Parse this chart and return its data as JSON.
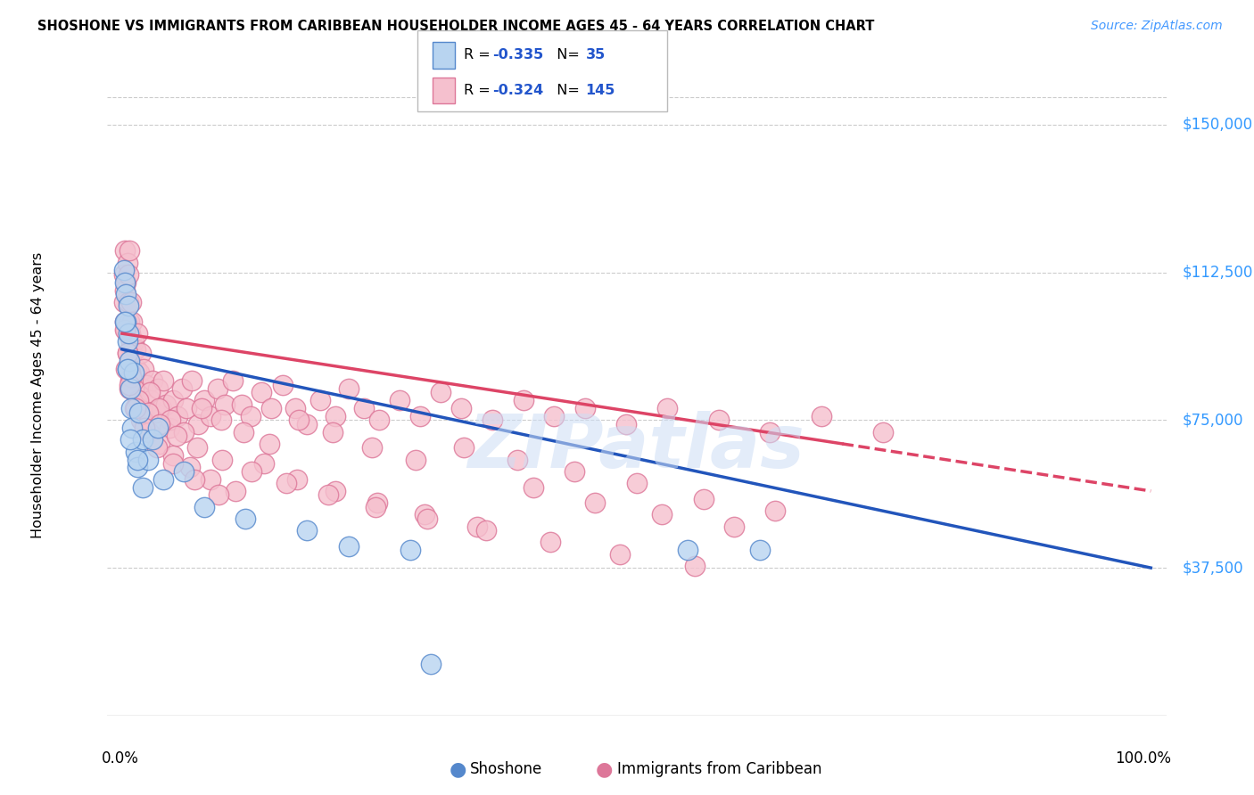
{
  "title": "SHOSHONE VS IMMIGRANTS FROM CARIBBEAN HOUSEHOLDER INCOME AGES 45 - 64 YEARS CORRELATION CHART",
  "source": "Source: ZipAtlas.com",
  "ylabel": "Householder Income Ages 45 - 64 years",
  "ytick_labels": [
    "$37,500",
    "$75,000",
    "$112,500",
    "$150,000"
  ],
  "ytick_values": [
    37500,
    75000,
    112500,
    150000
  ],
  "ymin": 0,
  "ymax": 162500,
  "xmin": 0.0,
  "xmax": 1.0,
  "shoshone_color": "#b8d4f0",
  "caribbean_color": "#f5c0ce",
  "shoshone_edge_color": "#5588cc",
  "caribbean_edge_color": "#dd7799",
  "shoshone_line_color": "#2255bb",
  "caribbean_line_color": "#dd4466",
  "watermark": "ZIPatlas",
  "shoshone_x": [
    0.002,
    0.003,
    0.004,
    0.004,
    0.005,
    0.005,
    0.006,
    0.006,
    0.007,
    0.008,
    0.009,
    0.01,
    0.011,
    0.013,
    0.015,
    0.017,
    0.02,
    0.02,
    0.025,
    0.03,
    0.035,
    0.04,
    0.06,
    0.08,
    0.12,
    0.18,
    0.22,
    0.28,
    0.55,
    0.62,
    0.003,
    0.005,
    0.008,
    0.015,
    0.3
  ],
  "shoshone_y": [
    113000,
    110000,
    107000,
    100000,
    95000,
    88000,
    104000,
    97000,
    90000,
    83000,
    78000,
    73000,
    87000,
    67000,
    63000,
    77000,
    58000,
    70000,
    65000,
    70000,
    73000,
    60000,
    62000,
    53000,
    50000,
    47000,
    43000,
    42000,
    42000,
    42000,
    100000,
    88000,
    70000,
    65000,
    13000
  ],
  "caribbean_x": [
    0.002,
    0.002,
    0.003,
    0.003,
    0.003,
    0.004,
    0.004,
    0.005,
    0.005,
    0.006,
    0.006,
    0.006,
    0.007,
    0.007,
    0.007,
    0.008,
    0.008,
    0.009,
    0.009,
    0.009,
    0.01,
    0.01,
    0.011,
    0.011,
    0.012,
    0.013,
    0.014,
    0.015,
    0.016,
    0.017,
    0.018,
    0.019,
    0.02,
    0.021,
    0.022,
    0.024,
    0.026,
    0.028,
    0.03,
    0.032,
    0.035,
    0.038,
    0.04,
    0.043,
    0.046,
    0.05,
    0.054,
    0.058,
    0.063,
    0.068,
    0.074,
    0.08,
    0.086,
    0.093,
    0.1,
    0.108,
    0.116,
    0.125,
    0.135,
    0.145,
    0.156,
    0.168,
    0.18,
    0.193,
    0.207,
    0.22,
    0.235,
    0.25,
    0.27,
    0.29,
    0.31,
    0.33,
    0.36,
    0.39,
    0.42,
    0.45,
    0.49,
    0.53,
    0.58,
    0.63,
    0.68,
    0.74,
    0.003,
    0.005,
    0.008,
    0.011,
    0.015,
    0.02,
    0.027,
    0.036,
    0.047,
    0.06,
    0.077,
    0.096,
    0.118,
    0.143,
    0.172,
    0.205,
    0.243,
    0.285,
    0.332,
    0.384,
    0.44,
    0.5,
    0.565,
    0.635,
    0.004,
    0.007,
    0.012,
    0.018,
    0.026,
    0.037,
    0.05,
    0.066,
    0.086,
    0.11,
    0.138,
    0.17,
    0.207,
    0.248,
    0.294,
    0.345,
    0.4,
    0.46,
    0.525,
    0.595,
    0.005,
    0.009,
    0.016,
    0.025,
    0.037,
    0.053,
    0.073,
    0.097,
    0.126,
    0.16,
    0.2,
    0.246,
    0.297,
    0.354,
    0.416,
    0.484,
    0.557,
    0.007,
    0.013,
    0.022,
    0.034,
    0.05,
    0.07,
    0.094
  ],
  "caribbean_y": [
    105000,
    112000,
    100000,
    118000,
    108000,
    98000,
    110000,
    115000,
    97000,
    105000,
    88000,
    112000,
    100000,
    88000,
    118000,
    97000,
    85000,
    95000,
    105000,
    88000,
    92000,
    100000,
    87000,
    95000,
    82000,
    93000,
    88000,
    97000,
    80000,
    87000,
    92000,
    78000,
    83000,
    88000,
    77000,
    84000,
    77000,
    80000,
    85000,
    77000,
    83000,
    78000,
    85000,
    79000,
    73000,
    80000,
    76000,
    83000,
    78000,
    85000,
    74000,
    80000,
    76000,
    83000,
    79000,
    85000,
    79000,
    76000,
    82000,
    78000,
    84000,
    78000,
    74000,
    80000,
    76000,
    83000,
    78000,
    75000,
    80000,
    76000,
    82000,
    78000,
    75000,
    80000,
    76000,
    78000,
    74000,
    78000,
    75000,
    72000,
    76000,
    72000,
    98000,
    92000,
    87000,
    83000,
    79000,
    75000,
    82000,
    78000,
    75000,
    72000,
    78000,
    75000,
    72000,
    69000,
    75000,
    72000,
    68000,
    65000,
    68000,
    65000,
    62000,
    59000,
    55000,
    52000,
    88000,
    83000,
    78000,
    75000,
    72000,
    69000,
    66000,
    63000,
    60000,
    57000,
    64000,
    60000,
    57000,
    54000,
    51000,
    48000,
    58000,
    54000,
    51000,
    48000,
    92000,
    86000,
    80000,
    77000,
    74000,
    71000,
    68000,
    65000,
    62000,
    59000,
    56000,
    53000,
    50000,
    47000,
    44000,
    41000,
    38000,
    84000,
    78000,
    73000,
    68000,
    64000,
    60000,
    56000
  ]
}
